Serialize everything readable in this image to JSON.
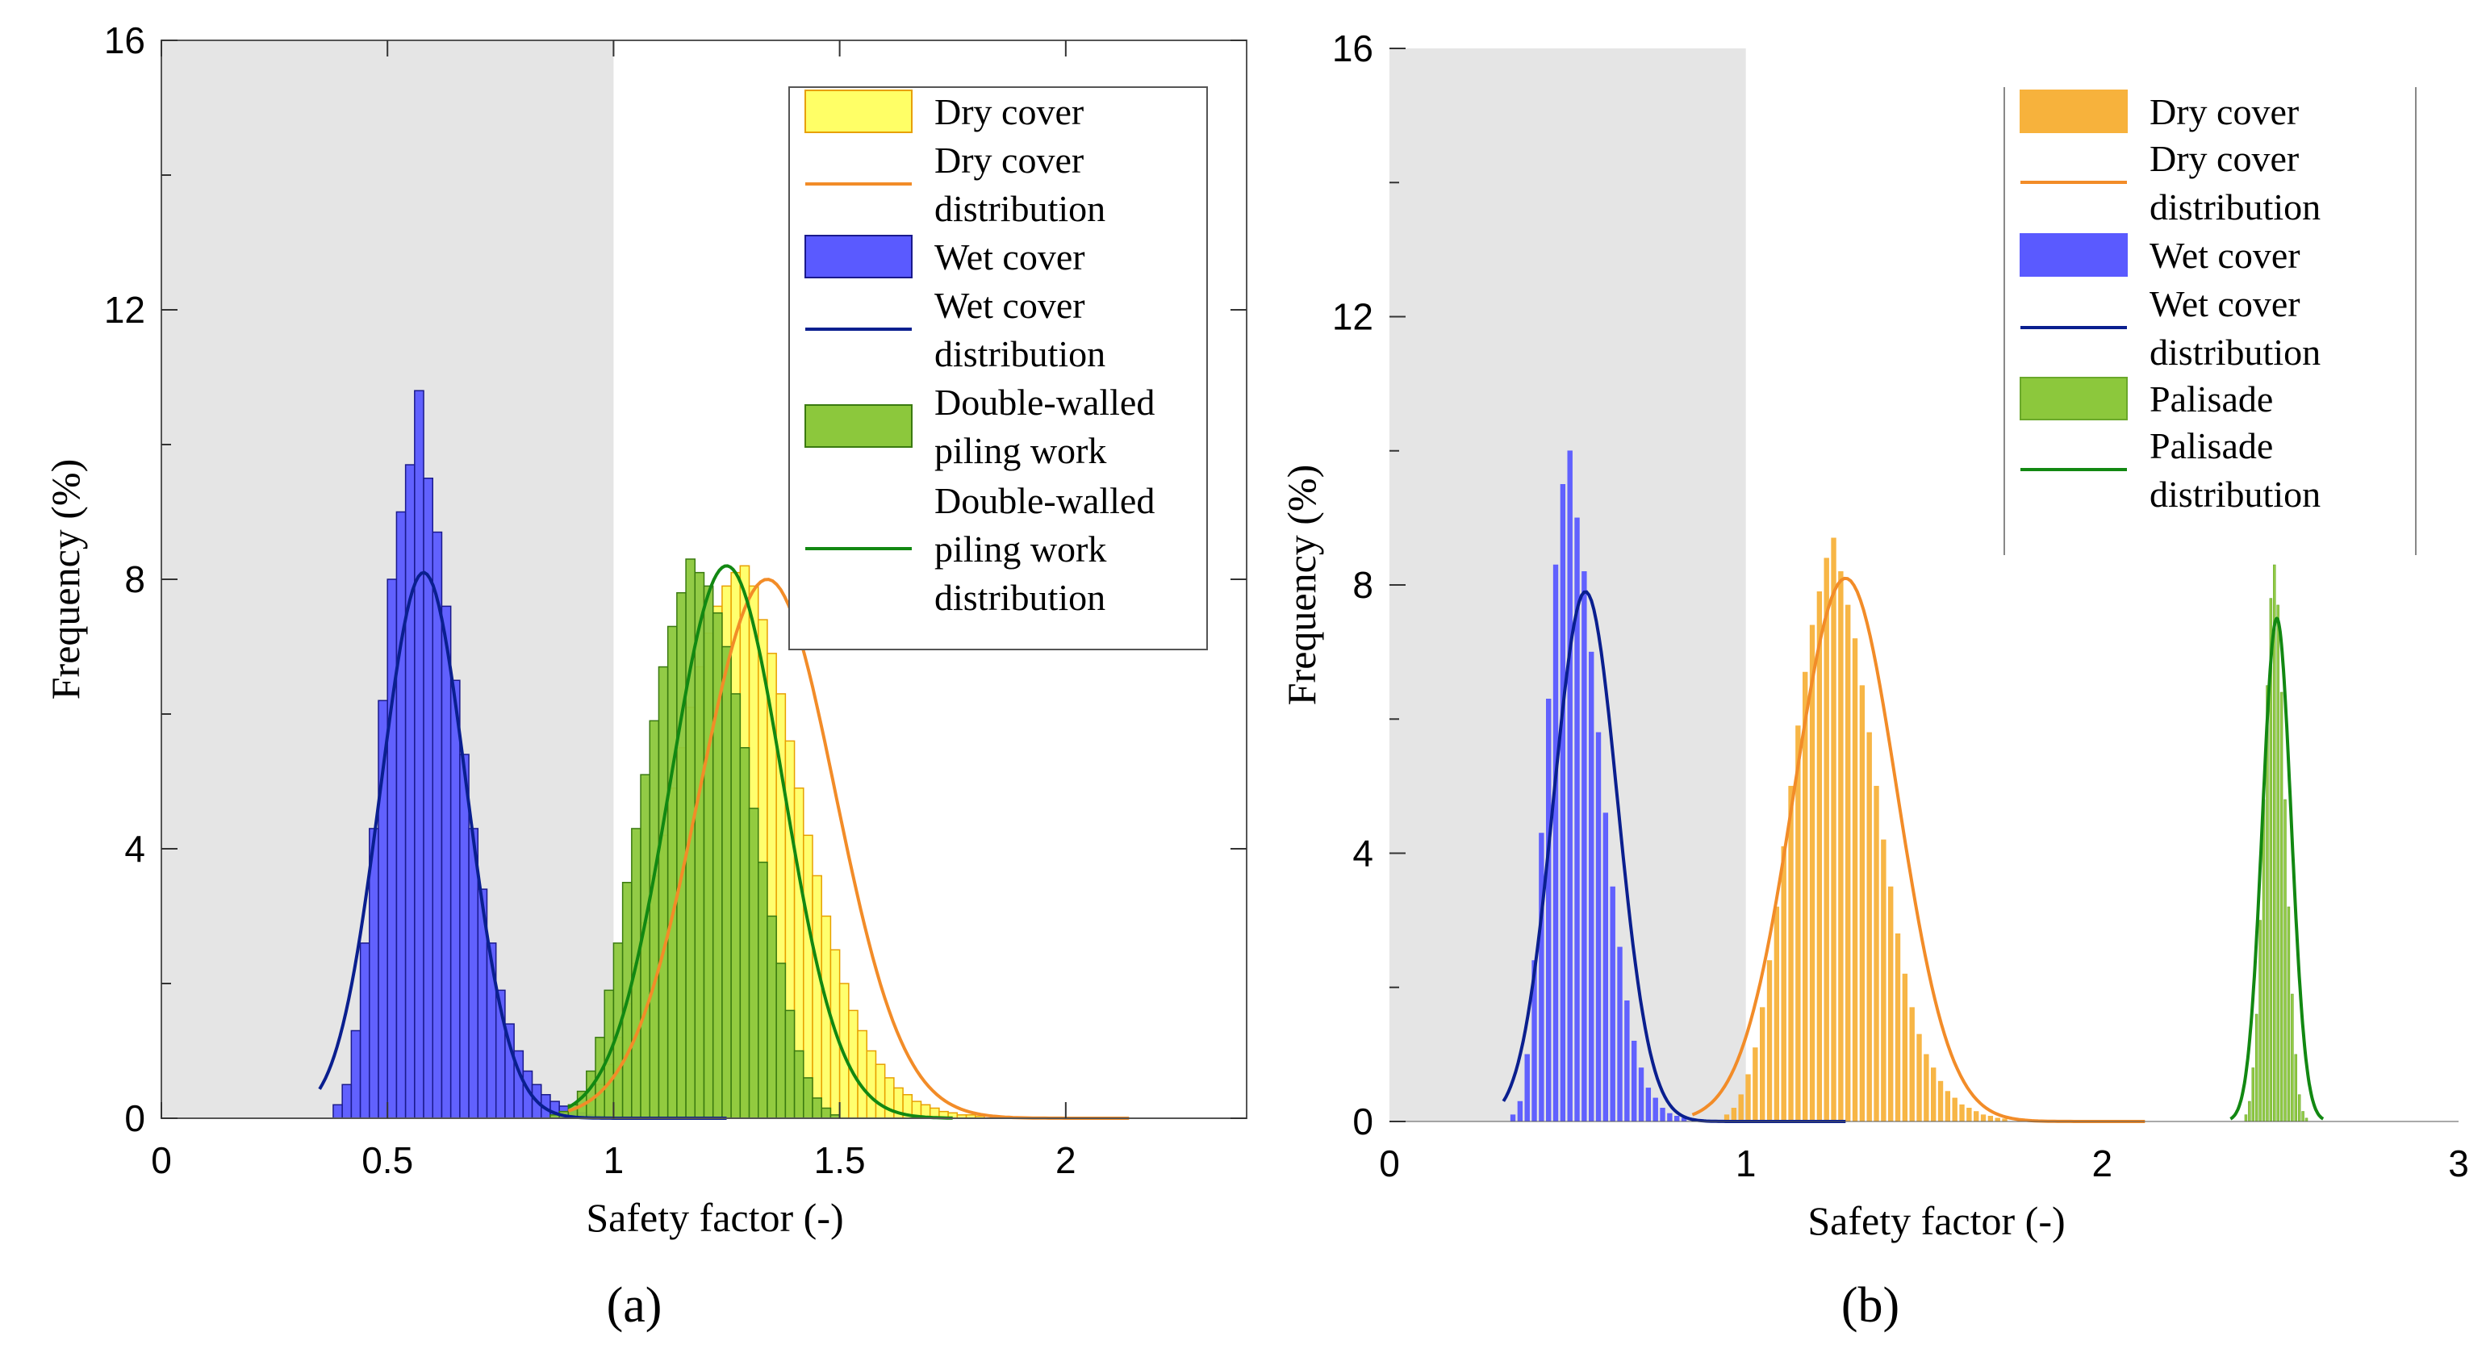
{
  "figure": {
    "panels": [
      {
        "label": "(a)"
      },
      {
        "label": "(b)"
      }
    ]
  },
  "chart_data": [
    {
      "type": "bar",
      "panel": "(a)",
      "title": "",
      "xlabel": "Safety factor (-)",
      "ylabel": "Frequency (%)",
      "xlim": [
        0,
        2.4
      ],
      "ylim": [
        0,
        16
      ],
      "xticks": [
        "0",
        "0.5",
        "1",
        "1.5",
        "2"
      ],
      "yticks": [
        "0",
        "4",
        "8",
        "12",
        "16"
      ],
      "shaded_region": {
        "x": [
          0,
          1
        ],
        "color": "#e5e5e5"
      },
      "legend_position": "top-right",
      "bin_width": 0.02,
      "series": [
        {
          "name": "Dry cover",
          "kind": "histogram",
          "color": "#ffff66",
          "edge": "#e8a000",
          "x0": 0.9,
          "values": [
            0.1,
            0.2,
            0.3,
            0.5,
            0.8,
            1.2,
            1.7,
            2.3,
            2.9,
            3.6,
            4.2,
            4.9,
            5.5,
            6.1,
            6.7,
            7.2,
            7.6,
            7.9,
            8.1,
            8.2,
            7.9,
            7.4,
            6.9,
            6.3,
            5.6,
            4.9,
            4.2,
            3.6,
            3.0,
            2.5,
            2.0,
            1.6,
            1.3,
            1.0,
            0.8,
            0.6,
            0.45,
            0.35,
            0.25,
            0.2,
            0.15,
            0.1,
            0.08,
            0.05,
            0.05,
            0.03
          ]
        },
        {
          "name": "Dry cover distribution",
          "kind": "curve",
          "color": "#f28c28",
          "mean": 1.34,
          "sd": 0.15,
          "peak": 8.0,
          "range": [
            0.9,
            2.14
          ]
        },
        {
          "name": "Wet cover",
          "kind": "histogram",
          "color": "#5a5aff",
          "edge": "#1a1a8c",
          "x0": 0.38,
          "values": [
            0.2,
            0.5,
            1.3,
            2.6,
            4.3,
            6.2,
            8.0,
            9.0,
            9.7,
            10.8,
            9.5,
            8.7,
            7.6,
            6.5,
            5.4,
            4.3,
            3.4,
            2.6,
            1.9,
            1.4,
            1.0,
            0.7,
            0.5,
            0.35,
            0.25,
            0.18,
            0.12,
            0.08,
            0.05,
            0.03
          ]
        },
        {
          "name": "Wet cover distribution",
          "kind": "curve",
          "color": "#0a1f8f",
          "mean": 0.58,
          "sd": 0.095,
          "peak": 8.1,
          "range": [
            0.35,
            1.25
          ]
        },
        {
          "name": "Double-walled piling work",
          "kind": "histogram",
          "color": "#8cc83c",
          "edge": "#3a7a10",
          "x0": 0.86,
          "values": [
            0.05,
            0.1,
            0.2,
            0.4,
            0.7,
            1.2,
            1.9,
            2.6,
            3.5,
            4.3,
            5.1,
            5.9,
            6.7,
            7.3,
            7.8,
            8.3,
            8.1,
            7.9,
            7.5,
            7.0,
            6.3,
            5.5,
            4.6,
            3.8,
            3.0,
            2.3,
            1.6,
            1.0,
            0.6,
            0.3,
            0.15,
            0.05
          ]
        },
        {
          "name": "Double-walled piling work distribution",
          "kind": "curve",
          "color": "#128812",
          "mean": 1.25,
          "sd": 0.125,
          "peak": 8.2,
          "range": [
            0.9,
            1.75
          ]
        }
      ],
      "legend": [
        "Dry cover",
        "Dry cover distribution",
        "Wet cover",
        "Wet cover distribution",
        "Double-walled piling work",
        "Double-walled piling work distribution"
      ]
    },
    {
      "type": "bar",
      "panel": "(b)",
      "title": "",
      "xlabel": "Safety factor (-)",
      "ylabel": "Frequency (%)",
      "xlim": [
        0,
        3
      ],
      "ylim": [
        0,
        16
      ],
      "xticks": [
        "0",
        "1",
        "2",
        "3"
      ],
      "yticks": [
        "0",
        "4",
        "8",
        "12",
        "16"
      ],
      "shaded_region": {
        "x": [
          0,
          1
        ],
        "color": "#e5e5e5"
      },
      "legend_position": "top-right",
      "bin_width": 0.02,
      "series": [
        {
          "name": "Dry cover",
          "kind": "histogram",
          "color": "#f7b23c",
          "edge": "#f7b23c",
          "x0": 0.94,
          "values": [
            0.1,
            0.2,
            0.4,
            0.7,
            1.1,
            1.7,
            2.4,
            3.2,
            4.1,
            5.0,
            5.9,
            6.7,
            7.4,
            7.9,
            8.4,
            8.7,
            8.2,
            7.7,
            7.2,
            6.5,
            5.8,
            5.0,
            4.2,
            3.5,
            2.8,
            2.2,
            1.7,
            1.3,
            1.0,
            0.8,
            0.6,
            0.45,
            0.35,
            0.25,
            0.2,
            0.15,
            0.1,
            0.08,
            0.05,
            0.04
          ]
        },
        {
          "name": "Dry cover distribution",
          "kind": "curve",
          "color": "#f28c28",
          "mean": 1.28,
          "sd": 0.145,
          "peak": 8.1,
          "range": [
            0.85,
            2.12
          ]
        },
        {
          "name": "Wet cover",
          "kind": "histogram",
          "color": "#5a5aff",
          "edge": "#5a5aff",
          "x0": 0.34,
          "values": [
            0.1,
            0.3,
            1.0,
            2.4,
            4.3,
            6.3,
            8.3,
            9.5,
            10.0,
            9.0,
            8.2,
            7.0,
            5.8,
            4.6,
            3.5,
            2.6,
            1.8,
            1.2,
            0.8,
            0.5,
            0.35,
            0.2,
            0.12,
            0.08,
            0.05
          ]
        },
        {
          "name": "Wet cover distribution",
          "kind": "curve",
          "color": "#0a1f8f",
          "mean": 0.55,
          "sd": 0.09,
          "peak": 7.9,
          "range": [
            0.32,
            1.28
          ]
        },
        {
          "name": "Palisade",
          "kind": "histogram",
          "color": "#8cc83c",
          "edge": "#6aa82a",
          "x0": 2.4,
          "bin_width": 0.01,
          "values": [
            0.1,
            0.3,
            0.8,
            1.6,
            3.0,
            4.8,
            6.5,
            7.8,
            8.3,
            7.7,
            6.4,
            4.8,
            3.2,
            1.9,
            1.0,
            0.4,
            0.15,
            0.05
          ]
        },
        {
          "name": "Palisade distribution",
          "kind": "curve",
          "color": "#128812",
          "mean": 2.49,
          "sd": 0.04,
          "peak": 7.5,
          "range": [
            2.36,
            2.62
          ]
        }
      ],
      "legend": [
        "Dry cover",
        "Dry cover distribution",
        "Wet cover",
        "Wet cover distribution",
        "Palisade",
        "Palisade distribution"
      ]
    }
  ]
}
